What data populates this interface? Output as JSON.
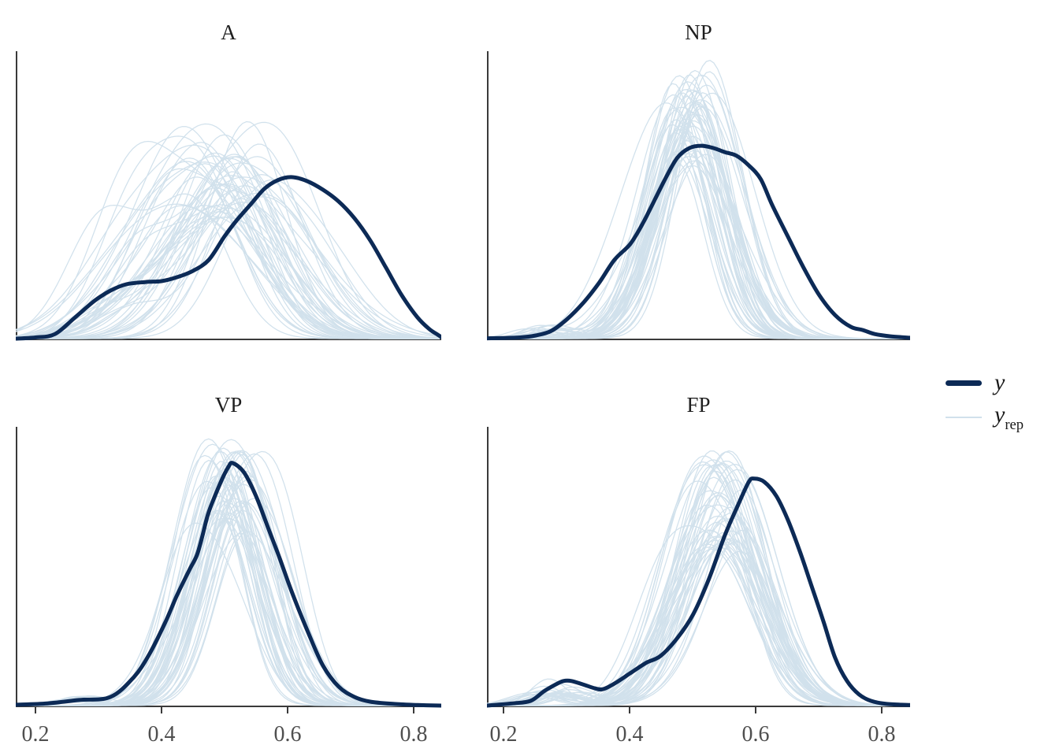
{
  "figure": {
    "background": "#ffffff"
  },
  "colors": {
    "y_line": "#0c2a56",
    "yrep_line": "#d1e1ec",
    "axis": "#3a3a3a",
    "tick_label": "#4f4f4f",
    "panel_title": "#1f1f1f"
  },
  "legend": {
    "y_label": "y",
    "yrep_label": "y",
    "yrep_sub": "rep"
  },
  "x_axis": {
    "ticks": [
      0.2,
      0.4,
      0.6,
      0.8
    ],
    "tick_labels": [
      "0.2",
      "0.4",
      "0.6",
      "0.8"
    ]
  },
  "chart_data": {
    "type": "line",
    "description": "Posterior predictive check (density overlay): dark curve = kernel density of observed y, light curves = densities of ~50 simulated replicates y_rep, faceted by group.",
    "x_domain": [
      0.17,
      0.845
    ],
    "y_axis": {
      "label": "",
      "ticks": "none",
      "relative_density_scale": [
        0,
        1
      ]
    },
    "legend_entries": [
      {
        "name": "y",
        "style": "thick dark line"
      },
      {
        "name": "y_rep",
        "style": "thin light line"
      }
    ],
    "facets": [
      {
        "title": "A",
        "row": 0,
        "col": 0,
        "y_density": [
          [
            0.169,
            0.0
          ],
          [
            0.2,
            0.004
          ],
          [
            0.231,
            0.016
          ],
          [
            0.263,
            0.074
          ],
          [
            0.294,
            0.132
          ],
          [
            0.319,
            0.167
          ],
          [
            0.344,
            0.189
          ],
          [
            0.375,
            0.197
          ],
          [
            0.4,
            0.2
          ],
          [
            0.425,
            0.214
          ],
          [
            0.45,
            0.236
          ],
          [
            0.475,
            0.274
          ],
          [
            0.5,
            0.356
          ],
          [
            0.519,
            0.411
          ],
          [
            0.541,
            0.466
          ],
          [
            0.563,
            0.521
          ],
          [
            0.584,
            0.551
          ],
          [
            0.606,
            0.562
          ],
          [
            0.631,
            0.548
          ],
          [
            0.656,
            0.518
          ],
          [
            0.681,
            0.477
          ],
          [
            0.706,
            0.419
          ],
          [
            0.731,
            0.342
          ],
          [
            0.756,
            0.247
          ],
          [
            0.781,
            0.151
          ],
          [
            0.806,
            0.074
          ],
          [
            0.825,
            0.033
          ],
          [
            0.838,
            0.014
          ],
          [
            0.844,
            0.005
          ]
        ],
        "yrep_sim": {
          "n": 50,
          "seed": 11,
          "center": 0.5,
          "center_jitter": 0.048,
          "width_range": [
            0.055,
            0.092
          ],
          "height_range": [
            0.42,
            0.76
          ],
          "second_comp_offset": 0.13,
          "left_bump": {
            "prob": 0.6,
            "offset": -0.12,
            "amp": 0.32,
            "sd_ratio": 0.9
          }
        }
      },
      {
        "title": "NP",
        "row": 0,
        "col": 1,
        "y_density": [
          [
            0.174,
            0.001
          ],
          [
            0.226,
            0.004
          ],
          [
            0.251,
            0.011
          ],
          [
            0.276,
            0.027
          ],
          [
            0.301,
            0.068
          ],
          [
            0.326,
            0.123
          ],
          [
            0.351,
            0.192
          ],
          [
            0.376,
            0.274
          ],
          [
            0.401,
            0.329
          ],
          [
            0.42,
            0.397
          ],
          [
            0.439,
            0.479
          ],
          [
            0.458,
            0.562
          ],
          [
            0.476,
            0.63
          ],
          [
            0.495,
            0.663
          ],
          [
            0.514,
            0.671
          ],
          [
            0.533,
            0.663
          ],
          [
            0.551,
            0.649
          ],
          [
            0.57,
            0.636
          ],
          [
            0.589,
            0.603
          ],
          [
            0.608,
            0.555
          ],
          [
            0.626,
            0.466
          ],
          [
            0.651,
            0.356
          ],
          [
            0.676,
            0.247
          ],
          [
            0.701,
            0.151
          ],
          [
            0.726,
            0.082
          ],
          [
            0.751,
            0.041
          ],
          [
            0.77,
            0.03
          ],
          [
            0.789,
            0.016
          ],
          [
            0.814,
            0.008
          ],
          [
            0.845,
            0.003
          ]
        ],
        "yrep_sim": {
          "n": 50,
          "seed": 22,
          "center": 0.497,
          "center_jitter": 0.024,
          "width_range": [
            0.042,
            0.066
          ],
          "height_range": [
            0.6,
            0.97
          ],
          "second_comp_offset": 0.07,
          "left_bump": {
            "prob": 0.25,
            "offset": -0.2,
            "amp": 0.06,
            "sd_ratio": 0.6
          }
        }
      },
      {
        "title": "VP",
        "row": 1,
        "col": 0,
        "y_density": [
          [
            0.169,
            0.003
          ],
          [
            0.219,
            0.008
          ],
          [
            0.269,
            0.02
          ],
          [
            0.319,
            0.031
          ],
          [
            0.356,
            0.102
          ],
          [
            0.381,
            0.186
          ],
          [
            0.406,
            0.299
          ],
          [
            0.425,
            0.398
          ],
          [
            0.444,
            0.486
          ],
          [
            0.456,
            0.539
          ],
          [
            0.465,
            0.61
          ],
          [
            0.475,
            0.695
          ],
          [
            0.494,
            0.802
          ],
          [
            0.506,
            0.856
          ],
          [
            0.513,
            0.87
          ],
          [
            0.531,
            0.836
          ],
          [
            0.55,
            0.751
          ],
          [
            0.569,
            0.638
          ],
          [
            0.588,
            0.525
          ],
          [
            0.606,
            0.412
          ],
          [
            0.631,
            0.271
          ],
          [
            0.656,
            0.144
          ],
          [
            0.681,
            0.068
          ],
          [
            0.706,
            0.031
          ],
          [
            0.731,
            0.014
          ],
          [
            0.769,
            0.006
          ],
          [
            0.806,
            0.002
          ],
          [
            0.844,
            0.0
          ]
        ],
        "yrep_sim": {
          "n": 50,
          "seed": 33,
          "center": 0.508,
          "center_jitter": 0.021,
          "width_range": [
            0.038,
            0.062
          ],
          "height_range": [
            0.6,
            0.97
          ],
          "second_comp_offset": 0.07,
          "left_bump": {
            "prob": 0.2,
            "offset": -0.22,
            "amp": 0.05,
            "sd_ratio": 0.6
          }
        }
      },
      {
        "title": "FP",
        "row": 1,
        "col": 1,
        "y_density": [
          [
            0.174,
            0.0
          ],
          [
            0.214,
            0.008
          ],
          [
            0.243,
            0.017
          ],
          [
            0.264,
            0.051
          ],
          [
            0.283,
            0.076
          ],
          [
            0.295,
            0.088
          ],
          [
            0.308,
            0.088
          ],
          [
            0.326,
            0.076
          ],
          [
            0.345,
            0.062
          ],
          [
            0.358,
            0.059
          ],
          [
            0.376,
            0.079
          ],
          [
            0.401,
            0.116
          ],
          [
            0.426,
            0.153
          ],
          [
            0.449,
            0.178
          ],
          [
            0.476,
            0.243
          ],
          [
            0.501,
            0.328
          ],
          [
            0.526,
            0.455
          ],
          [
            0.551,
            0.61
          ],
          [
            0.57,
            0.709
          ],
          [
            0.589,
            0.802
          ],
          [
            0.598,
            0.814
          ],
          [
            0.614,
            0.802
          ],
          [
            0.633,
            0.751
          ],
          [
            0.651,
            0.667
          ],
          [
            0.67,
            0.554
          ],
          [
            0.689,
            0.427
          ],
          [
            0.708,
            0.299
          ],
          [
            0.726,
            0.172
          ],
          [
            0.745,
            0.088
          ],
          [
            0.764,
            0.04
          ],
          [
            0.783,
            0.017
          ],
          [
            0.808,
            0.006
          ],
          [
            0.845,
            0.002
          ]
        ],
        "yrep_sim": {
          "n": 50,
          "seed": 44,
          "center": 0.562,
          "center_jitter": 0.026,
          "width_range": [
            0.045,
            0.072
          ],
          "height_range": [
            0.55,
            0.92
          ],
          "second_comp_offset": -0.09,
          "left_bump": {
            "prob": 0.55,
            "offset": -0.26,
            "amp": 0.09,
            "sd_ratio": 0.55
          }
        }
      }
    ]
  }
}
